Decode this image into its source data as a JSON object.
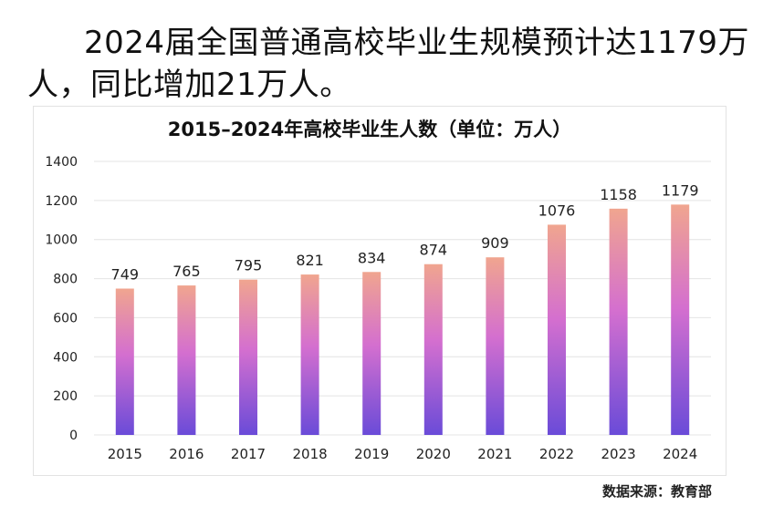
{
  "headline": {
    "line1": "2024届全国普通高校毕业生规模预计达1179万",
    "line2": "人，同比增加21万人。"
  },
  "source": "数据来源：教育部",
  "colors": {
    "bar_top": "#f0a58f",
    "bar_mid": "#d46fcf",
    "bar_bottom": "#6a4bd8",
    "grid": "#e4e4e4"
  },
  "chart_data": {
    "type": "bar",
    "title": "2015–2024年高校毕业生人数（单位：万人）",
    "categories": [
      "2015",
      "2016",
      "2017",
      "2018",
      "2019",
      "2020",
      "2021",
      "2022",
      "2023",
      "2024"
    ],
    "values": [
      749,
      765,
      795,
      821,
      834,
      874,
      909,
      1076,
      1158,
      1179
    ],
    "ylim": [
      0,
      1400
    ],
    "yticks": [
      0,
      200,
      400,
      600,
      800,
      1000,
      1200,
      1400
    ],
    "grid": true,
    "xlabel": "",
    "ylabel": ""
  }
}
